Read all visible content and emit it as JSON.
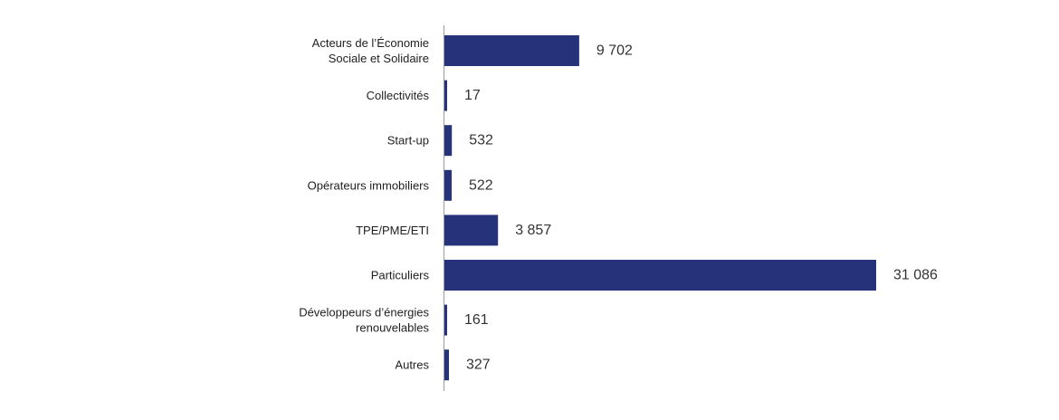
{
  "chart_data": {
    "type": "bar",
    "orientation": "horizontal",
    "title": "",
    "xlabel": "",
    "ylabel": "",
    "categories": [
      [
        "Acteurs de l’Économie",
        "Sociale et Solidaire"
      ],
      [
        "Collectivités"
      ],
      [
        "Start-up"
      ],
      [
        "Opérateurs immobiliers"
      ],
      [
        "TPE/PME/ETI"
      ],
      [
        "Particuliers"
      ],
      [
        "Développeurs d’énergies",
        "renouvelables"
      ],
      [
        "Autres"
      ]
    ],
    "values": [
      9702,
      17,
      532,
      522,
      3857,
      31086,
      161,
      327
    ],
    "value_labels": [
      "9 702",
      "17",
      "532",
      "522",
      "3 857",
      "31 086",
      "161",
      "327"
    ],
    "xlim": [
      0,
      31086
    ],
    "grid": false,
    "legend": "none",
    "bar_color": "#26337a",
    "axis_color": "#9a9a9a"
  }
}
